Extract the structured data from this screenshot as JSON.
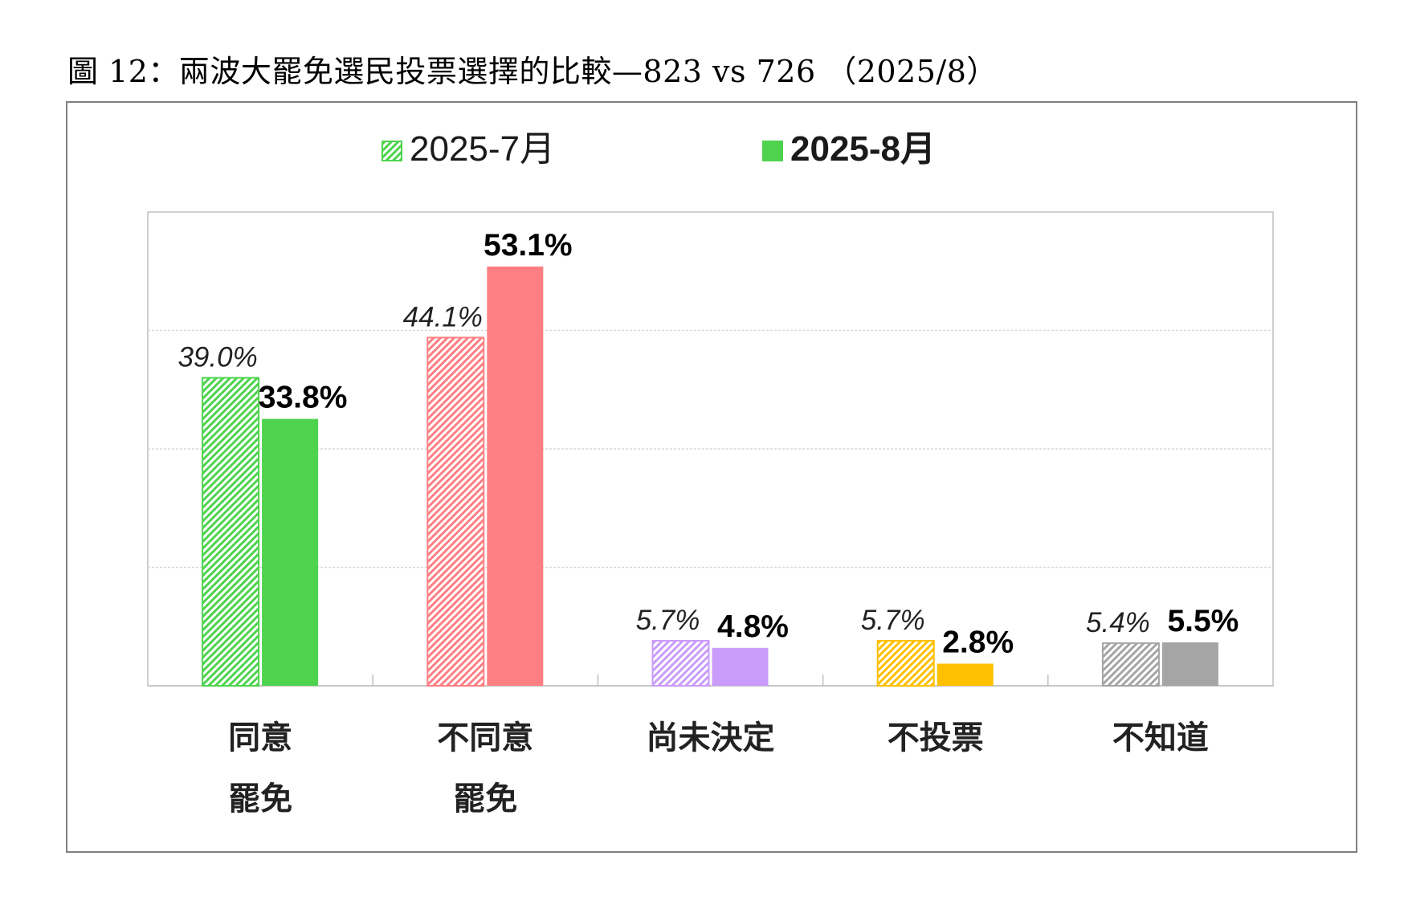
{
  "figure_title": "圖 12：兩波大罷免選民投票選擇的比較—823 vs 726 （2025/8）",
  "chart_data": {
    "type": "bar",
    "categories": [
      [
        "同意",
        "罷免"
      ],
      [
        "不同意",
        "罷免"
      ],
      [
        "尚未決定"
      ],
      [
        "不投票"
      ],
      [
        "不知道"
      ]
    ],
    "series": [
      {
        "name": "2025-7月",
        "values": [
          39.0,
          44.1,
          5.7,
          5.7,
          5.4
        ],
        "labels": [
          "39.0%",
          "44.1%",
          "5.7%",
          "5.7%",
          "5.4%"
        ],
        "pattern": "hatched",
        "label_style": "italic"
      },
      {
        "name": "2025-8月",
        "values": [
          33.8,
          53.1,
          4.8,
          2.8,
          5.5
        ],
        "labels": [
          "33.8%",
          "53.1%",
          "4.8%",
          "2.8%",
          "5.5%"
        ],
        "pattern": "solid",
        "label_style": "bold"
      }
    ],
    "category_colors": [
      "#4fd34f",
      "#fe7f83",
      "#c99cfa",
      "#fec000",
      "#a6a5a5"
    ],
    "legend_color": "#4fd34f",
    "ylim": [
      0,
      60
    ],
    "gridlines": [
      15,
      30,
      45
    ],
    "grid": true,
    "legend_position": "top"
  }
}
